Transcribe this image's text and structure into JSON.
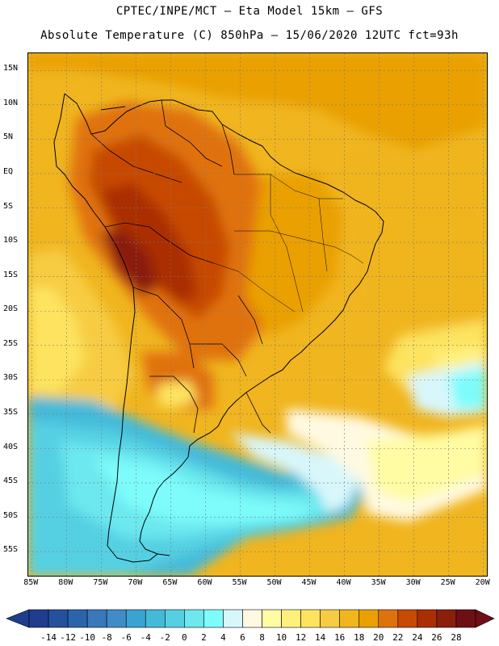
{
  "header": {
    "title_line1": "CPTEC/INPE/MCT –  Eta Model 15km – GFS",
    "title_line2": "Absolute Temperature (C) 850hPa – 15/06/2020 12UTC fct=93h"
  },
  "map": {
    "lon_range": [
      -85.5,
      -19.5
    ],
    "lat_range": [
      -58.5,
      17.5
    ],
    "lat_labels": [
      "15N",
      "10N",
      "5N",
      "EQ",
      "5S",
      "10S",
      "15S",
      "20S",
      "25S",
      "30S",
      "35S",
      "40S",
      "45S",
      "50S",
      "55S"
    ],
    "lat_values": [
      15,
      10,
      5,
      0,
      -5,
      -10,
      -15,
      -20,
      -25,
      -30,
      -35,
      -40,
      -45,
      -50,
      -55
    ],
    "lon_labels": [
      "85W",
      "80W",
      "75W",
      "70W",
      "65W",
      "60W",
      "55W",
      "50W",
      "45W",
      "40W",
      "35W",
      "30W",
      "25W",
      "20W"
    ],
    "lon_values": [
      -85,
      -80,
      -75,
      -70,
      -65,
      -60,
      -55,
      -50,
      -45,
      -40,
      -35,
      -30,
      -25,
      -20
    ]
  },
  "colorbar": {
    "labels": [
      "-14",
      "-12",
      "-10",
      "-8",
      "-6",
      "-4",
      "-2",
      "0",
      "2",
      "4",
      "6",
      "8",
      "10",
      "12",
      "14",
      "16",
      "18",
      "20",
      "22",
      "24",
      "26",
      "28"
    ],
    "colors": [
      "#1e3d8f",
      "#24509e",
      "#2c63ad",
      "#3a77bb",
      "#3f8dc8",
      "#3aa3d1",
      "#44bad9",
      "#55d0e3",
      "#6ce8ee",
      "#7dfcfb",
      "#d8f7fb",
      "#fff9e1",
      "#fffca3",
      "#fff07c",
      "#fde35e",
      "#f7cc43",
      "#f0b51f",
      "#e9a000",
      "#e0720d",
      "#c74a05",
      "#aa2e04",
      "#8a1f0c",
      "#6e0f16"
    ]
  }
}
